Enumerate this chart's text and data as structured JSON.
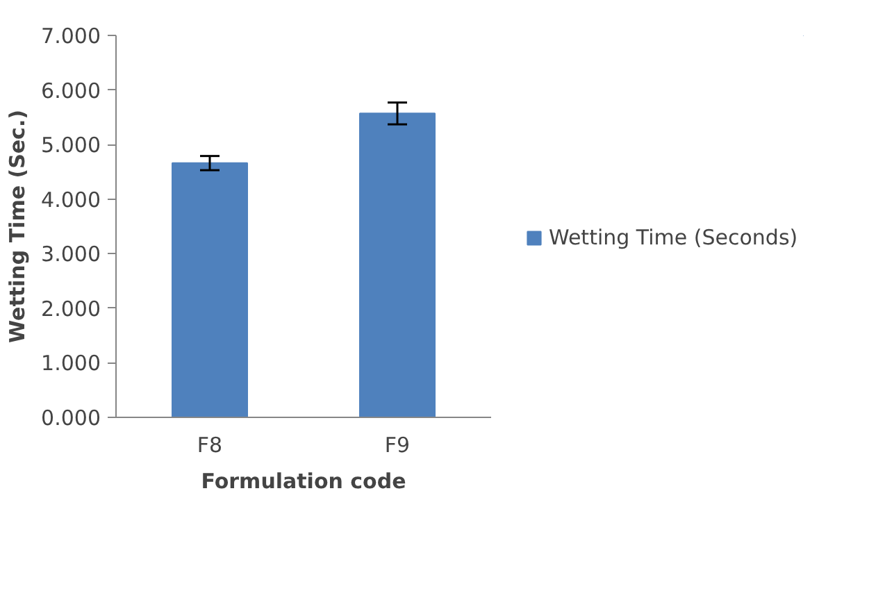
{
  "chart_data": {
    "type": "bar",
    "xlabel": "Formulation code",
    "ylabel": "Wetting Time (Sec.)",
    "categories": [
      "F8",
      "F9"
    ],
    "series": [
      {
        "name": "Wetting Time (Seconds)",
        "color": "#4f81bd",
        "values": [
          4.66,
          5.57
        ],
        "errors": [
          0.13,
          0.2
        ]
      }
    ],
    "ylim": [
      0,
      7
    ],
    "yticks": [
      {
        "value": 0,
        "label": "0.000"
      },
      {
        "value": 1,
        "label": "1.000"
      },
      {
        "value": 2,
        "label": "2.000"
      },
      {
        "value": 3,
        "label": "3.000"
      },
      {
        "value": 4,
        "label": "4.000"
      },
      {
        "value": 5,
        "label": "5.000"
      },
      {
        "value": 6,
        "label": "6.000"
      },
      {
        "value": 7,
        "label": "7.000"
      }
    ],
    "grid": false,
    "legend": "right"
  }
}
